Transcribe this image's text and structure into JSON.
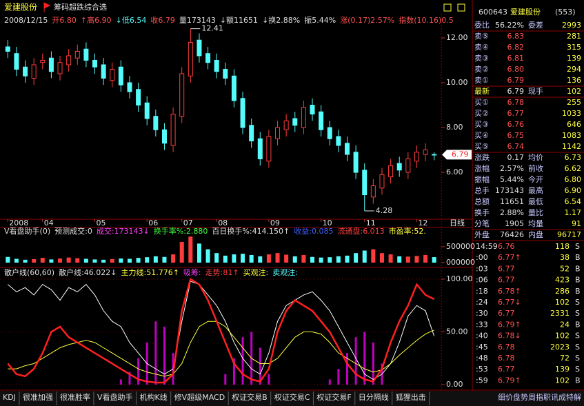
{
  "app": {
    "stock_name": "爱建股份",
    "formula": "筹码超跌综合选",
    "info": [
      {
        "text": "2008/12/15",
        "color": "#e0e0e0"
      },
      {
        "text": "开6.80",
        "color": "#ff5050"
      },
      {
        "text": "↑高6.90",
        "color": "#ff5050"
      },
      {
        "text": "↓低6.54",
        "color": "#54fcfc"
      },
      {
        "text": "收6.79",
        "color": "#ff5050"
      },
      {
        "text": "量173143",
        "color": "#e0e0e0"
      },
      {
        "text": "↓额11651",
        "color": "#e0e0e0"
      },
      {
        "text": "↓换2.88%",
        "color": "#e0e0e0"
      },
      {
        "text": "振5.44%",
        "color": "#e0e0e0"
      },
      {
        "text": "涨(0.17)2.57%",
        "color": "#ff5050"
      },
      {
        "text": "指数(10.16)0.5",
        "color": "#ff5050"
      }
    ]
  },
  "chart_data": [
    {
      "type": "candlestick",
      "open": [
        11.6,
        11.3,
        10.7,
        10.2,
        10.9,
        11.1,
        10.4,
        10.8,
        11.1,
        11.5,
        11.0,
        10.8,
        10.1,
        10.7,
        10.0,
        9.7,
        9.1,
        8.5,
        7.9,
        7.2,
        8.5,
        10.3,
        11.9,
        11.3,
        11.0,
        10.6,
        10.3,
        9.3,
        8.1,
        7.5,
        6.5,
        7.5,
        7.9,
        8.4,
        8.0,
        9.0,
        8.7,
        8.0,
        7.6,
        7.3,
        6.9,
        6.1,
        4.9,
        5.3,
        5.8,
        6.4,
        6.0,
        6.5,
        6.8,
        6.8
      ],
      "high": [
        11.9,
        11.6,
        11.0,
        11.1,
        11.3,
        11.4,
        11.2,
        11.5,
        11.7,
        11.8,
        11.3,
        11.1,
        10.9,
        11.0,
        10.3,
        10.0,
        9.4,
        8.8,
        8.2,
        8.9,
        10.7,
        12.41,
        12.2,
        11.6,
        11.3,
        10.9,
        10.6,
        9.6,
        8.4,
        7.8,
        7.9,
        8.3,
        8.6,
        8.7,
        9.2,
        9.3,
        9.0,
        8.3,
        7.9,
        7.6,
        7.2,
        6.4,
        5.7,
        6.2,
        6.6,
        6.7,
        6.9,
        7.2,
        7.3,
        6.9
      ],
      "low": [
        11.1,
        10.3,
        10.0,
        9.9,
        10.6,
        10.2,
        10.1,
        10.5,
        10.8,
        10.7,
        10.4,
        9.9,
        9.8,
        9.6,
        9.3,
        8.7,
        8.1,
        7.6,
        7.0,
        6.9,
        8.2,
        10.0,
        10.9,
        10.6,
        10.2,
        9.9,
        8.9,
        7.7,
        7.1,
        6.3,
        6.2,
        7.2,
        7.6,
        7.8,
        7.7,
        8.3,
        7.6,
        7.2,
        6.9,
        6.5,
        5.7,
        4.28,
        4.6,
        5.0,
        5.5,
        5.8,
        5.7,
        6.2,
        6.5,
        6.54
      ],
      "close": [
        11.4,
        10.6,
        10.3,
        10.8,
        11.0,
        10.5,
        10.9,
        11.2,
        11.4,
        11.0,
        10.7,
        10.2,
        10.6,
        9.9,
        9.6,
        9.0,
        8.4,
        7.9,
        7.3,
        8.6,
        10.4,
        11.8,
        11.2,
        10.9,
        10.5,
        10.2,
        9.2,
        8.0,
        7.4,
        6.6,
        7.6,
        8.0,
        8.3,
        8.1,
        8.9,
        8.6,
        7.9,
        7.5,
        7.2,
        6.8,
        6.0,
        5.0,
        5.4,
        5.9,
        6.3,
        6.1,
        6.6,
        6.9,
        7.0,
        6.79
      ],
      "up_color": "#ff3c3c",
      "down_color": "#54fcfc",
      "ylim": [
        3.91,
        12.46
      ],
      "yticks": [
        {
          "value": 12,
          "label": "12.00"
        },
        {
          "value": 10,
          "label": "10.00"
        },
        {
          "value": 8,
          "label": "8.00"
        },
        {
          "value": 6,
          "label": "6.00"
        }
      ],
      "xticks": [
        {
          "value": 0,
          "label": "2008"
        },
        {
          "value": 4,
          "label": "04"
        },
        {
          "value": 10,
          "label": "05"
        },
        {
          "value": 16,
          "label": "06"
        },
        {
          "value": 20,
          "label": "07"
        },
        {
          "value": 24,
          "label": "08"
        },
        {
          "value": 30,
          "label": "09"
        },
        {
          "value": 36,
          "label": "10"
        },
        {
          "value": 41,
          "label": "11"
        },
        {
          "value": 47,
          "label": "12"
        }
      ],
      "period_label": "日线",
      "high_label": 12.41,
      "low_label": 4.28,
      "last_label": 6.79
    },
    {
      "type": "bar",
      "header": [
        {
          "text": "V看盘助手(0)",
          "color": "#e0e0e0"
        },
        {
          "text": "预测成交:0",
          "color": "#e0e0e0"
        },
        {
          "text": "成交:173143↓",
          "color": "#ff40ff"
        },
        {
          "text": "换手率%:2.880",
          "color": "#40ff40"
        },
        {
          "text": "百日换手%:414.150↑",
          "color": "#e0e0e0"
        },
        {
          "text": "收益:0.085",
          "color": "#4060ff"
        },
        {
          "text": "流通盘:6.013",
          "color": "#ff4040"
        },
        {
          "text": "市盈率:52.",
          "color": "#ffff40"
        }
      ],
      "values": [
        180000,
        120000,
        90000,
        110000,
        150000,
        100000,
        130000,
        160000,
        140000,
        120000,
        100000,
        90000,
        110000,
        130000,
        120000,
        150000,
        170000,
        200000,
        180000,
        260000,
        650000,
        820000,
        600000,
        420000,
        300000,
        220000,
        260000,
        280000,
        240000,
        200000,
        260000,
        300000,
        250000,
        200000,
        240000,
        180000,
        160000,
        170000,
        200000,
        220000,
        300000,
        380000,
        420000,
        300000,
        260000,
        200000,
        190000,
        210000,
        240000,
        173143
      ],
      "ylim": [
        0,
        890000
      ],
      "yticks": [
        {
          "value": 500000,
          "label": "500000"
        },
        {
          "value": 0,
          "label": "000000"
        }
      ]
    },
    {
      "type": "line",
      "header": [
        {
          "text": "散户线(60,60)",
          "color": "#e0e0e0"
        },
        {
          "text": "散户线:46.022↓",
          "color": "#e0e0e0"
        },
        {
          "text": "主力线:51.776↑",
          "color": "#ffff40"
        },
        {
          "text": "吸筹:",
          "color": "#ff40ff"
        },
        {
          "text": "走势:81↑",
          "color": "#ff4040"
        },
        {
          "text": "买观注:",
          "color": "#ffff40"
        },
        {
          "text": "卖观注:",
          "color": "#54fcfc"
        }
      ],
      "series": [
        {
          "color": "#ffffff",
          "values": [
            95,
            88,
            92,
            85,
            95,
            90,
            80,
            92,
            88,
            95,
            85,
            70,
            60,
            55,
            40,
            30,
            20,
            15,
            10,
            15,
            60,
            98,
            95,
            85,
            75,
            60,
            40,
            25,
            15,
            10,
            30,
            60,
            75,
            80,
            85,
            88,
            80,
            70,
            55,
            40,
            25,
            10,
            5,
            10,
            20,
            40,
            65,
            75,
            70,
            46.022
          ]
        },
        {
          "color": "#ffff40",
          "values": [
            15,
            15,
            18,
            20,
            25,
            30,
            35,
            38,
            40,
            42,
            40,
            35,
            30,
            25,
            20,
            15,
            12,
            10,
            8,
            10,
            20,
            40,
            55,
            60,
            60,
            55,
            45,
            35,
            25,
            20,
            20,
            25,
            35,
            45,
            50,
            50,
            48,
            40,
            30,
            25,
            20,
            15,
            12,
            14,
            20,
            28,
            35,
            42,
            48,
            51.776
          ]
        },
        {
          "color": "#ff2020",
          "values": [
            20,
            10,
            8,
            15,
            30,
            50,
            55,
            45,
            40,
            35,
            30,
            25,
            20,
            15,
            10,
            5,
            3,
            2,
            2,
            10,
            70,
            100,
            95,
            80,
            60,
            40,
            20,
            10,
            5,
            3,
            15,
            50,
            70,
            80,
            75,
            70,
            60,
            50,
            35,
            20,
            10,
            5,
            3,
            15,
            40,
            60,
            75,
            95,
            85,
            81
          ]
        }
      ],
      "bars": {
        "color": "#c000c0",
        "values": [
          0,
          0,
          0,
          0,
          0,
          0,
          0,
          0,
          0,
          0,
          0,
          0,
          0,
          5,
          12,
          25,
          40,
          60,
          55,
          30,
          0,
          0,
          0,
          0,
          0,
          10,
          25,
          45,
          50,
          35,
          10,
          0,
          0,
          0,
          0,
          0,
          0,
          5,
          15,
          30,
          45,
          50,
          40,
          20,
          0,
          0,
          0,
          0,
          0,
          0
        ]
      },
      "ylim": [
        -4.5,
        107.8
      ],
      "yticks": [
        {
          "value": 100,
          "label": "100.00"
        },
        {
          "value": 50,
          "label": "50.00"
        },
        {
          "value": 0,
          "label": "0.00"
        }
      ],
      "grid": true
    }
  ],
  "quote": {
    "code": "600643",
    "name": "爱建股份",
    "count": "(553)",
    "rows": [
      [
        "委比",
        "56.22%",
        "委差",
        "2993"
      ],
      [
        "卖⑤",
        "6.83",
        "281"
      ],
      [
        "卖④",
        "6.82",
        "315"
      ],
      [
        "卖③",
        "6.81",
        "139"
      ],
      [
        "卖②",
        "6.80",
        "294"
      ],
      [
        "卖①",
        "6.79",
        "136"
      ],
      [
        "最新",
        "6.79",
        "现手",
        "102"
      ],
      [
        "买①",
        "6.78",
        "255"
      ],
      [
        "买②",
        "6.77",
        "1033"
      ],
      [
        "买③",
        "6.76",
        "646"
      ],
      [
        "买④",
        "6.75",
        "1083"
      ],
      [
        "买⑤",
        "6.74",
        "1142"
      ],
      [
        "涨跌",
        "0.17",
        "均价",
        "6.73"
      ],
      [
        "涨幅",
        "2.57%",
        "前收",
        "6.62"
      ],
      [
        "振幅",
        "5.44%",
        "今开",
        "6.80"
      ],
      [
        "总手",
        "173143",
        "最高",
        "6.90"
      ],
      [
        "总额",
        "11651",
        "最低",
        "6.54"
      ],
      [
        "换手",
        "2.88%",
        "量比",
        "1.17"
      ],
      [
        "分笔",
        "1905",
        "均量",
        "91"
      ],
      [
        "外盘",
        "76426",
        "内盘",
        "96717"
      ]
    ],
    "ticks": [
      [
        "14:59",
        "6.76",
        "118",
        "S"
      ],
      [
        ":00",
        "6.77↑",
        "38",
        "B"
      ],
      [
        ":03",
        "6.77",
        "52",
        "B"
      ],
      [
        ":06",
        "6.77",
        "423",
        "B"
      ],
      [
        ":18",
        "6.78↑",
        "286",
        "B"
      ],
      [
        ":24",
        "6.77↓",
        "102",
        "S"
      ],
      [
        ":30",
        "6.77",
        "2331",
        "S"
      ],
      [
        ":33",
        "6.79↑",
        "24",
        "B"
      ],
      [
        ":40",
        "6.78↓",
        "102",
        "S"
      ],
      [
        ":45",
        "6.78",
        "2023",
        "S"
      ],
      [
        ":48",
        "6.78",
        "72",
        "S"
      ],
      [
        ":53",
        "6.77",
        "139",
        "S"
      ],
      [
        ":59",
        "6.79↑",
        "102",
        "B"
      ]
    ]
  },
  "tabs": [
    "KDJ",
    "很准加强",
    "很准胜率",
    "V看盘助手",
    "机构K线",
    "修V超级MACD",
    "权证交易B",
    "权证交易C",
    "权证交易F",
    "日分隔线",
    "狐狸出击"
  ],
  "tabs_right": "细价盘势周指职讯成特解"
}
